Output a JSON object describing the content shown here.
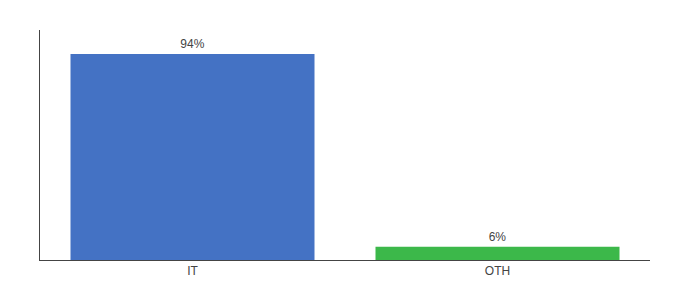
{
  "chart_data": {
    "type": "bar",
    "categories": [
      "IT",
      "OTH"
    ],
    "values": [
      94,
      6
    ],
    "value_labels": [
      "94%",
      "6%"
    ],
    "data_labels": true,
    "colors": [
      "#4472c4",
      "#3cb84a"
    ],
    "ylim": [
      0,
      105
    ],
    "grid": false,
    "tick_labels": "x"
  }
}
